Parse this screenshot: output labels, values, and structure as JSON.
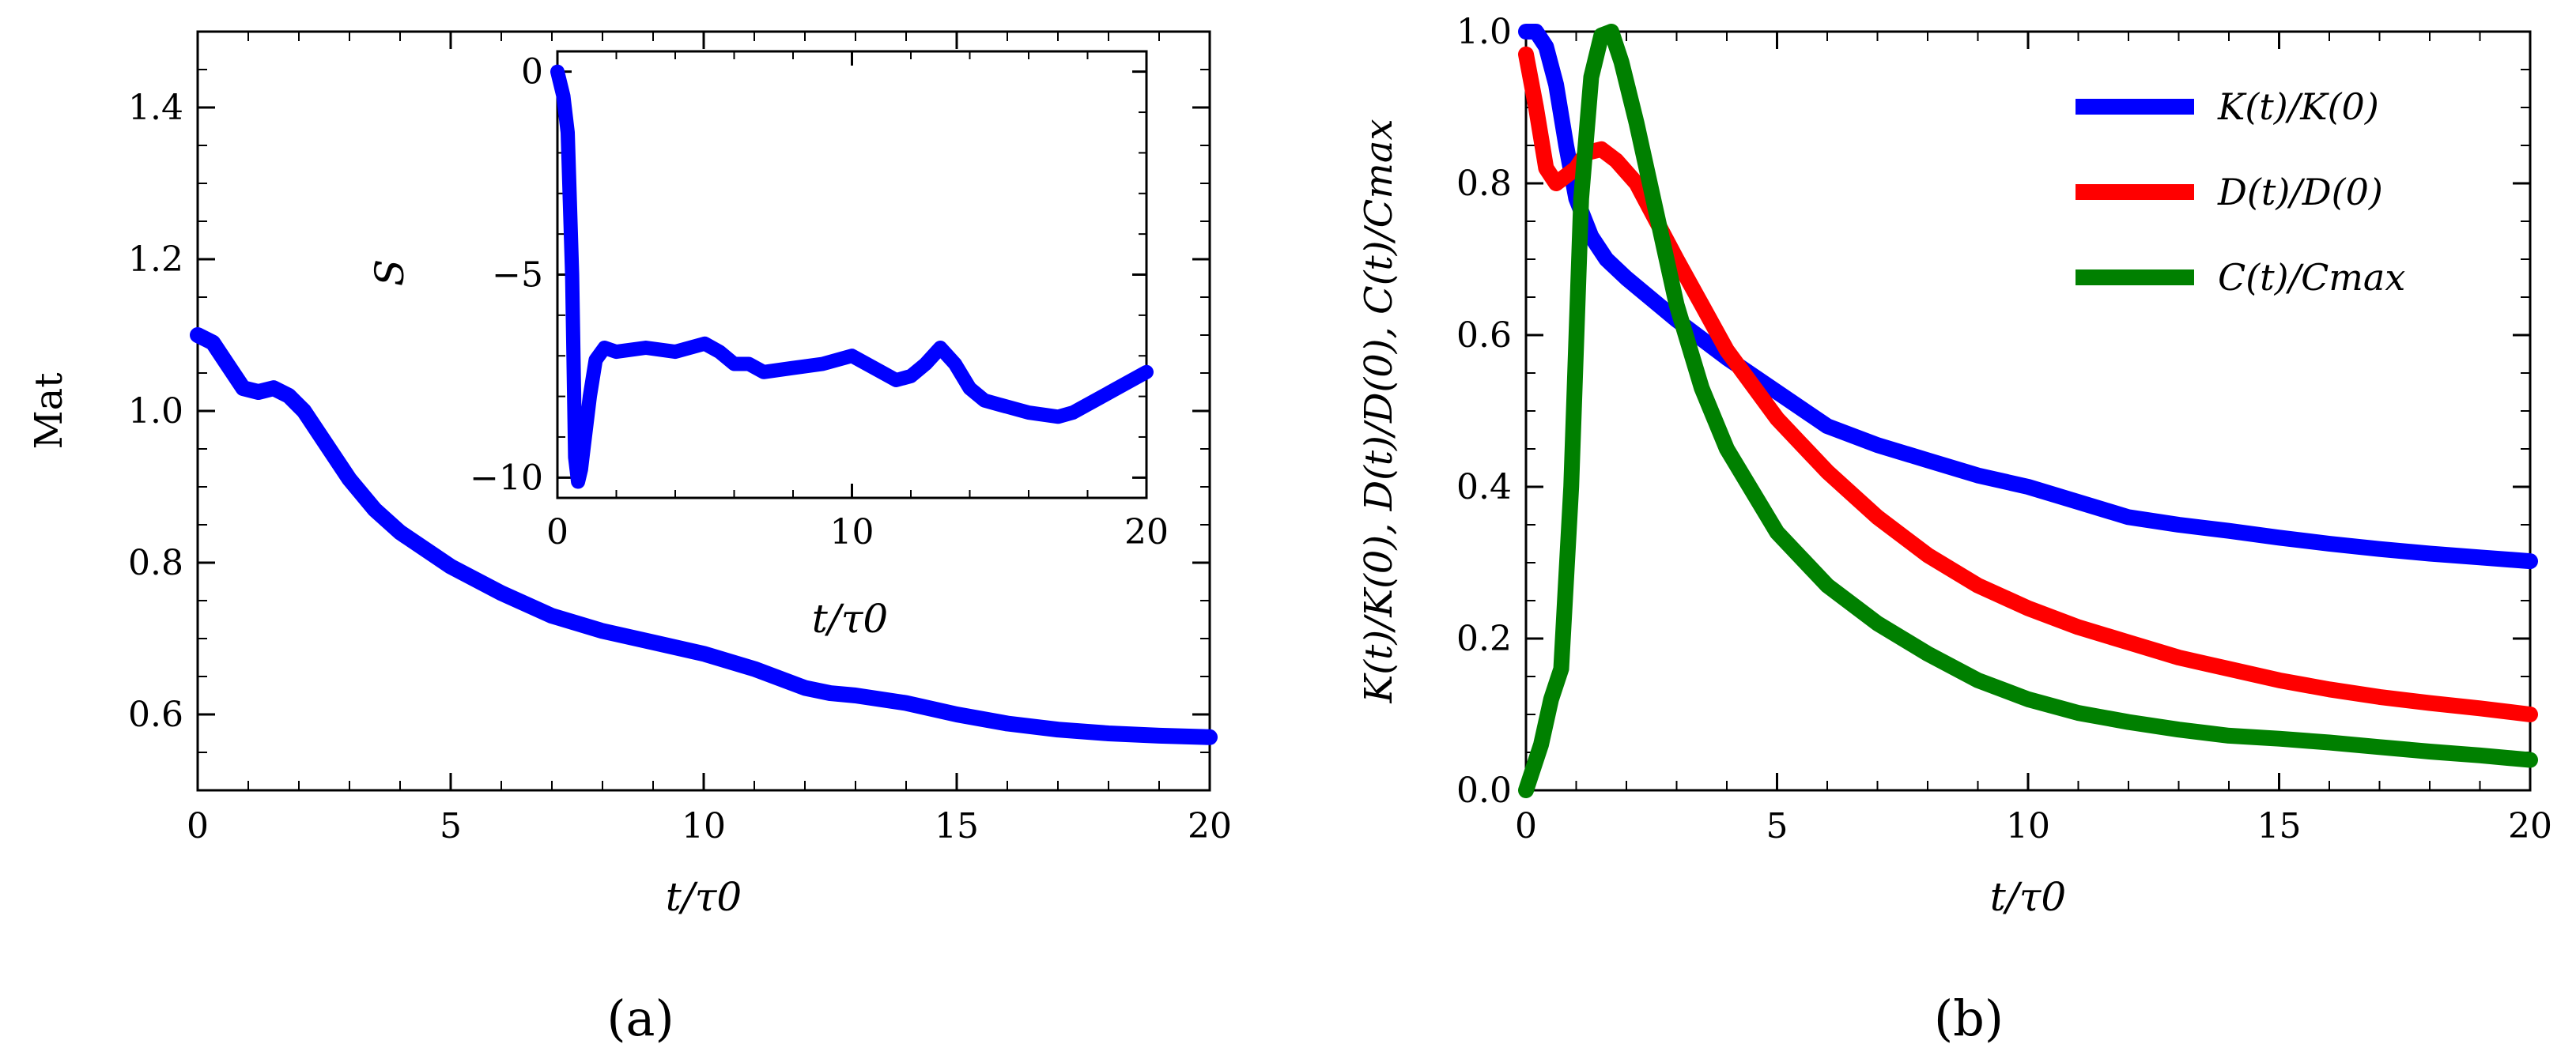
{
  "chart_data": [
    {
      "type": "line",
      "panel_label": "(a)",
      "xlabel": "t/τ0",
      "ylabel": "Mat",
      "xlim": [
        0,
        20
      ],
      "ylim": [
        0.5,
        1.5
      ],
      "xticks": [
        "0",
        "5",
        "10",
        "15",
        "20"
      ],
      "yticks": [
        "0.6",
        "0.8",
        "1.0",
        "1.2",
        "1.4"
      ],
      "xtick_values": [
        0,
        5,
        10,
        15,
        20
      ],
      "ytick_values": [
        0.6,
        0.8,
        1.0,
        1.2,
        1.4
      ],
      "series": [
        {
          "name": "Mat",
          "color": "#0000ff",
          "x": [
            0,
            0.3,
            0.6,
            0.9,
            1.2,
            1.5,
            1.8,
            2.1,
            2.5,
            3,
            3.5,
            4,
            5,
            6,
            7,
            8,
            9,
            10,
            11,
            12,
            12.5,
            13,
            14,
            15,
            16,
            17,
            18,
            19,
            20
          ],
          "y": [
            1.1,
            1.09,
            1.06,
            1.03,
            1.025,
            1.03,
            1.02,
            1.0,
            0.96,
            0.91,
            0.87,
            0.84,
            0.795,
            0.76,
            0.73,
            0.71,
            0.695,
            0.68,
            0.66,
            0.635,
            0.628,
            0.625,
            0.615,
            0.6,
            0.588,
            0.58,
            0.575,
            0.572,
            0.57
          ]
        }
      ]
    },
    {
      "type": "line",
      "panel_label": "inset",
      "xlabel": "t/τ0",
      "ylabel": "S",
      "xlim": [
        0,
        20
      ],
      "ylim": [
        -10.5,
        0.5
      ],
      "xticks": [
        "0",
        "10",
        "20"
      ],
      "yticks": [
        "0",
        "−5",
        "−10"
      ],
      "xtick_values": [
        0,
        10,
        20
      ],
      "ytick_values": [
        0,
        -5,
        -10
      ],
      "series": [
        {
          "name": "S",
          "color": "#0000ff",
          "x": [
            0,
            0.2,
            0.35,
            0.5,
            0.6,
            0.7,
            0.8,
            0.9,
            1.1,
            1.3,
            1.6,
            2,
            3,
            4,
            5,
            5.5,
            6,
            6.5,
            7,
            8,
            9,
            10,
            11,
            11.5,
            12,
            12.5,
            13,
            13.5,
            14,
            14.5,
            15,
            16,
            17,
            17.5,
            18,
            19,
            20
          ],
          "y": [
            0,
            -0.6,
            -1.5,
            -5,
            -9.5,
            -10.1,
            -9.8,
            -9.2,
            -8.0,
            -7.1,
            -6.8,
            -6.9,
            -6.8,
            -6.9,
            -6.7,
            -6.9,
            -7.2,
            -7.2,
            -7.4,
            -7.3,
            -7.2,
            -7.0,
            -7.4,
            -7.6,
            -7.5,
            -7.2,
            -6.8,
            -7.2,
            -7.8,
            -8.1,
            -8.2,
            -8.4,
            -8.5,
            -8.4,
            -8.2,
            -7.8,
            -7.4
          ]
        }
      ]
    },
    {
      "type": "line",
      "panel_label": "(b)",
      "xlabel": "t/τ0",
      "ylabel": "K(t)/K(0), D(t)/D(0), C(t)/Cmax",
      "xlim": [
        0,
        20
      ],
      "ylim": [
        0,
        1
      ],
      "xticks": [
        "0",
        "5",
        "10",
        "15",
        "20"
      ],
      "yticks": [
        "0.0",
        "0.2",
        "0.4",
        "0.6",
        "0.8",
        "1.0"
      ],
      "xtick_values": [
        0,
        5,
        10,
        15,
        20
      ],
      "ytick_values": [
        0,
        0.2,
        0.4,
        0.6,
        0.8,
        1.0
      ],
      "legend_position": "top-right",
      "series": [
        {
          "name": "K(t)/K(0)",
          "color": "#0000ff",
          "x": [
            0,
            0.2,
            0.4,
            0.6,
            0.8,
            1.0,
            1.3,
            1.6,
            2,
            3,
            4,
            5,
            6,
            7,
            8,
            9,
            10,
            11,
            12,
            13,
            14,
            15,
            16,
            17,
            18,
            19,
            20
          ],
          "y": [
            1.0,
            1.0,
            0.98,
            0.93,
            0.85,
            0.78,
            0.73,
            0.7,
            0.675,
            0.62,
            0.57,
            0.525,
            0.48,
            0.455,
            0.435,
            0.415,
            0.4,
            0.38,
            0.36,
            0.35,
            0.342,
            0.333,
            0.325,
            0.318,
            0.312,
            0.307,
            0.302
          ]
        },
        {
          "name": "D(t)/D(0)",
          "color": "#ff0000",
          "x": [
            0,
            0.2,
            0.4,
            0.6,
            0.8,
            1.0,
            1.2,
            1.5,
            1.8,
            2.2,
            2.6,
            3,
            3.5,
            4,
            5,
            6,
            7,
            8,
            9,
            10,
            11,
            12,
            13,
            14,
            15,
            16,
            17,
            18,
            19,
            20
          ],
          "y": [
            0.97,
            0.9,
            0.82,
            0.8,
            0.81,
            0.82,
            0.84,
            0.845,
            0.83,
            0.8,
            0.75,
            0.7,
            0.64,
            0.58,
            0.49,
            0.42,
            0.36,
            0.31,
            0.27,
            0.24,
            0.215,
            0.195,
            0.175,
            0.16,
            0.145,
            0.133,
            0.123,
            0.115,
            0.108,
            0.1
          ]
        },
        {
          "name": "C(t)/Cmax",
          "color": "#008000",
          "x": [
            0,
            0.3,
            0.5,
            0.7,
            0.9,
            1.1,
            1.3,
            1.5,
            1.7,
            1.9,
            2.2,
            2.6,
            3,
            3.5,
            4,
            5,
            6,
            7,
            8,
            9,
            10,
            11,
            12,
            13,
            14,
            15,
            16,
            17,
            18,
            19,
            20
          ],
          "y": [
            0.0,
            0.06,
            0.12,
            0.16,
            0.4,
            0.78,
            0.94,
            0.995,
            1.0,
            0.96,
            0.88,
            0.76,
            0.64,
            0.53,
            0.45,
            0.34,
            0.27,
            0.22,
            0.18,
            0.145,
            0.12,
            0.102,
            0.09,
            0.08,
            0.072,
            0.068,
            0.063,
            0.057,
            0.051,
            0.046,
            0.04
          ]
        }
      ]
    }
  ]
}
